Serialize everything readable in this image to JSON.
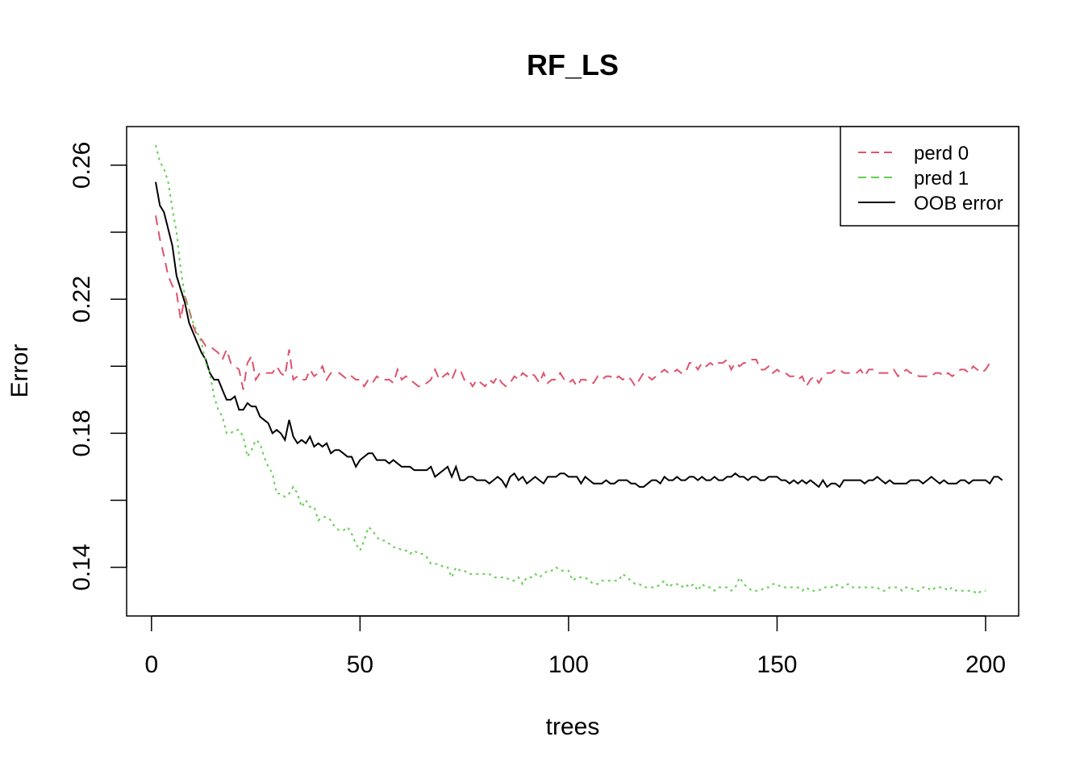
{
  "chart_data": {
    "type": "line",
    "title": "RF_LS",
    "xlabel": "trees",
    "ylabel": "Error",
    "xlim": [
      1,
      200
    ],
    "ylim": [
      0.131,
      0.266
    ],
    "x_ticks": [
      0,
      50,
      100,
      150,
      200
    ],
    "x_tick_labels": [
      "0",
      "50",
      "100",
      "150",
      "200"
    ],
    "y_ticks": [
      0.14,
      0.16,
      0.18,
      0.2,
      0.22,
      0.24,
      0.26
    ],
    "y_tick_labels": [
      "0.14",
      "",
      "0.18",
      "",
      "0.22",
      "",
      "0.26"
    ],
    "grid": false,
    "legend_position": "top-right",
    "x_start": 1,
    "series": [
      {
        "name": "OOB error",
        "color": "#000000",
        "dash": "solid",
        "values": [
          0.255,
          0.248,
          0.246,
          0.241,
          0.236,
          0.227,
          0.223,
          0.219,
          0.213,
          0.21,
          0.207,
          0.204,
          0.202,
          0.198,
          0.196,
          0.196,
          0.193,
          0.19,
          0.19,
          0.191,
          0.187,
          0.187,
          0.189,
          0.188,
          0.188,
          0.185,
          0.184,
          0.183,
          0.18,
          0.181,
          0.18,
          0.178,
          0.184,
          0.179,
          0.177,
          0.178,
          0.177,
          0.179,
          0.176,
          0.177,
          0.176,
          0.177,
          0.174,
          0.175,
          0.175,
          0.174,
          0.173,
          0.173,
          0.17,
          0.172,
          0.173,
          0.174,
          0.174,
          0.172,
          0.172,
          0.172,
          0.171,
          0.172,
          0.171,
          0.17,
          0.17,
          0.17,
          0.169,
          0.169,
          0.169,
          0.169,
          0.17,
          0.167,
          0.168,
          0.169,
          0.17,
          0.167,
          0.17,
          0.166,
          0.166,
          0.167,
          0.167,
          0.166,
          0.166,
          0.166,
          0.165,
          0.166,
          0.167,
          0.166,
          0.164,
          0.167,
          0.168,
          0.166,
          0.167,
          0.165,
          0.166,
          0.167,
          0.166,
          0.165,
          0.167,
          0.167,
          0.167,
          0.168,
          0.168,
          0.167,
          0.167,
          0.167,
          0.165,
          0.167,
          0.166,
          0.165,
          0.165,
          0.165,
          0.166,
          0.165,
          0.165,
          0.166,
          0.166,
          0.166,
          0.165,
          0.165,
          0.164,
          0.164,
          0.165,
          0.166,
          0.166,
          0.165,
          0.167,
          0.166,
          0.166,
          0.167,
          0.166,
          0.166,
          0.167,
          0.167,
          0.166,
          0.167,
          0.166,
          0.166,
          0.167,
          0.166,
          0.166,
          0.167,
          0.167,
          0.168,
          0.167,
          0.167,
          0.166,
          0.167,
          0.167,
          0.166,
          0.166,
          0.167,
          0.167,
          0.167,
          0.166,
          0.166,
          0.165,
          0.166,
          0.165,
          0.166,
          0.165,
          0.166,
          0.165,
          0.164,
          0.166,
          0.164,
          0.165,
          0.165,
          0.164,
          0.166,
          0.166,
          0.166,
          0.166,
          0.166,
          0.165,
          0.166,
          0.166,
          0.167,
          0.166,
          0.165,
          0.166,
          0.165,
          0.165,
          0.165,
          0.165,
          0.166,
          0.166,
          0.166,
          0.165,
          0.166,
          0.167,
          0.166,
          0.165,
          0.166,
          0.165,
          0.165,
          0.165,
          0.166,
          0.166,
          0.165,
          0.166,
          0.166,
          0.166,
          0.166,
          0.165,
          0.167,
          0.167,
          0.166
        ]
      },
      {
        "name": "perd 0",
        "color": "#df536b",
        "dash": "dashed",
        "values": [
          0.245,
          0.238,
          0.233,
          0.227,
          0.224,
          0.222,
          0.214,
          0.221,
          0.217,
          0.212,
          0.209,
          0.208,
          0.206,
          0.206,
          0.205,
          0.204,
          0.202,
          0.205,
          0.201,
          0.2,
          0.199,
          0.193,
          0.201,
          0.203,
          0.196,
          0.198,
          0.198,
          0.198,
          0.198,
          0.2,
          0.198,
          0.197,
          0.205,
          0.196,
          0.197,
          0.196,
          0.196,
          0.199,
          0.197,
          0.198,
          0.2,
          0.196,
          0.198,
          0.198,
          0.198,
          0.197,
          0.196,
          0.197,
          0.196,
          0.196,
          0.194,
          0.196,
          0.195,
          0.197,
          0.196,
          0.196,
          0.196,
          0.195,
          0.199,
          0.196,
          0.197,
          0.196,
          0.195,
          0.194,
          0.194,
          0.195,
          0.196,
          0.199,
          0.196,
          0.197,
          0.198,
          0.196,
          0.199,
          0.199,
          0.196,
          0.196,
          0.194,
          0.196,
          0.195,
          0.194,
          0.196,
          0.195,
          0.197,
          0.195,
          0.194,
          0.195,
          0.197,
          0.196,
          0.198,
          0.197,
          0.198,
          0.197,
          0.195,
          0.198,
          0.195,
          0.196,
          0.196,
          0.198,
          0.196,
          0.195,
          0.196,
          0.194,
          0.196,
          0.196,
          0.195,
          0.195,
          0.197,
          0.196,
          0.197,
          0.197,
          0.196,
          0.197,
          0.196,
          0.197,
          0.196,
          0.194,
          0.196,
          0.198,
          0.197,
          0.196,
          0.197,
          0.198,
          0.199,
          0.198,
          0.198,
          0.199,
          0.198,
          0.198,
          0.201,
          0.201,
          0.199,
          0.201,
          0.2,
          0.201,
          0.2,
          0.201,
          0.201,
          0.202,
          0.199,
          0.201,
          0.2,
          0.201,
          0.201,
          0.202,
          0.202,
          0.199,
          0.199,
          0.2,
          0.198,
          0.199,
          0.198,
          0.198,
          0.197,
          0.197,
          0.196,
          0.197,
          0.194,
          0.196,
          0.197,
          0.195,
          0.197,
          0.198,
          0.198,
          0.199,
          0.199,
          0.198,
          0.198,
          0.198,
          0.198,
          0.199,
          0.197,
          0.199,
          0.199,
          0.198,
          0.198,
          0.198,
          0.198,
          0.199,
          0.197,
          0.198,
          0.199,
          0.198,
          0.198,
          0.197,
          0.197,
          0.197,
          0.197,
          0.198,
          0.198,
          0.197,
          0.198,
          0.197,
          0.198,
          0.199,
          0.199,
          0.198,
          0.2,
          0.199,
          0.198,
          0.199,
          0.201,
          0.2
        ]
      },
      {
        "name": "pred 1",
        "color": "#61d04f",
        "dash": "dotted",
        "values": [
          0.266,
          0.261,
          0.259,
          0.255,
          0.247,
          0.24,
          0.229,
          0.221,
          0.217,
          0.213,
          0.21,
          0.207,
          0.201,
          0.198,
          0.191,
          0.187,
          0.185,
          0.18,
          0.18,
          0.181,
          0.181,
          0.179,
          0.173,
          0.175,
          0.178,
          0.177,
          0.173,
          0.17,
          0.168,
          0.162,
          0.162,
          0.161,
          0.162,
          0.164,
          0.162,
          0.158,
          0.16,
          0.158,
          0.158,
          0.154,
          0.155,
          0.155,
          0.154,
          0.152,
          0.151,
          0.151,
          0.152,
          0.15,
          0.147,
          0.145,
          0.148,
          0.152,
          0.151,
          0.149,
          0.148,
          0.148,
          0.147,
          0.146,
          0.146,
          0.145,
          0.145,
          0.144,
          0.145,
          0.144,
          0.144,
          0.143,
          0.141,
          0.141,
          0.141,
          0.14,
          0.14,
          0.137,
          0.14,
          0.139,
          0.139,
          0.138,
          0.138,
          0.138,
          0.138,
          0.138,
          0.138,
          0.137,
          0.137,
          0.137,
          0.137,
          0.136,
          0.136,
          0.137,
          0.135,
          0.137,
          0.137,
          0.138,
          0.137,
          0.138,
          0.139,
          0.139,
          0.14,
          0.139,
          0.139,
          0.139,
          0.136,
          0.137,
          0.137,
          0.137,
          0.136,
          0.135,
          0.135,
          0.136,
          0.136,
          0.136,
          0.136,
          0.136,
          0.138,
          0.137,
          0.136,
          0.135,
          0.135,
          0.134,
          0.134,
          0.134,
          0.134,
          0.135,
          0.136,
          0.134,
          0.135,
          0.135,
          0.134,
          0.135,
          0.134,
          0.135,
          0.133,
          0.135,
          0.134,
          0.134,
          0.133,
          0.134,
          0.134,
          0.134,
          0.133,
          0.134,
          0.137,
          0.135,
          0.134,
          0.133,
          0.133,
          0.133,
          0.134,
          0.134,
          0.135,
          0.135,
          0.134,
          0.134,
          0.134,
          0.134,
          0.134,
          0.133,
          0.134,
          0.133,
          0.133,
          0.133,
          0.134,
          0.134,
          0.134,
          0.135,
          0.134,
          0.134,
          0.135,
          0.134,
          0.134,
          0.134,
          0.134,
          0.134,
          0.134,
          0.134,
          0.133,
          0.133,
          0.134,
          0.134,
          0.134,
          0.133,
          0.134,
          0.134,
          0.133,
          0.133,
          0.134,
          0.134,
          0.133,
          0.134,
          0.134,
          0.134,
          0.133,
          0.134,
          0.133,
          0.133,
          0.133,
          0.133,
          0.133,
          0.132,
          0.133,
          0.133
        ]
      }
    ],
    "legend_order": [
      "perd 0",
      "pred 1",
      "OOB error"
    ]
  }
}
